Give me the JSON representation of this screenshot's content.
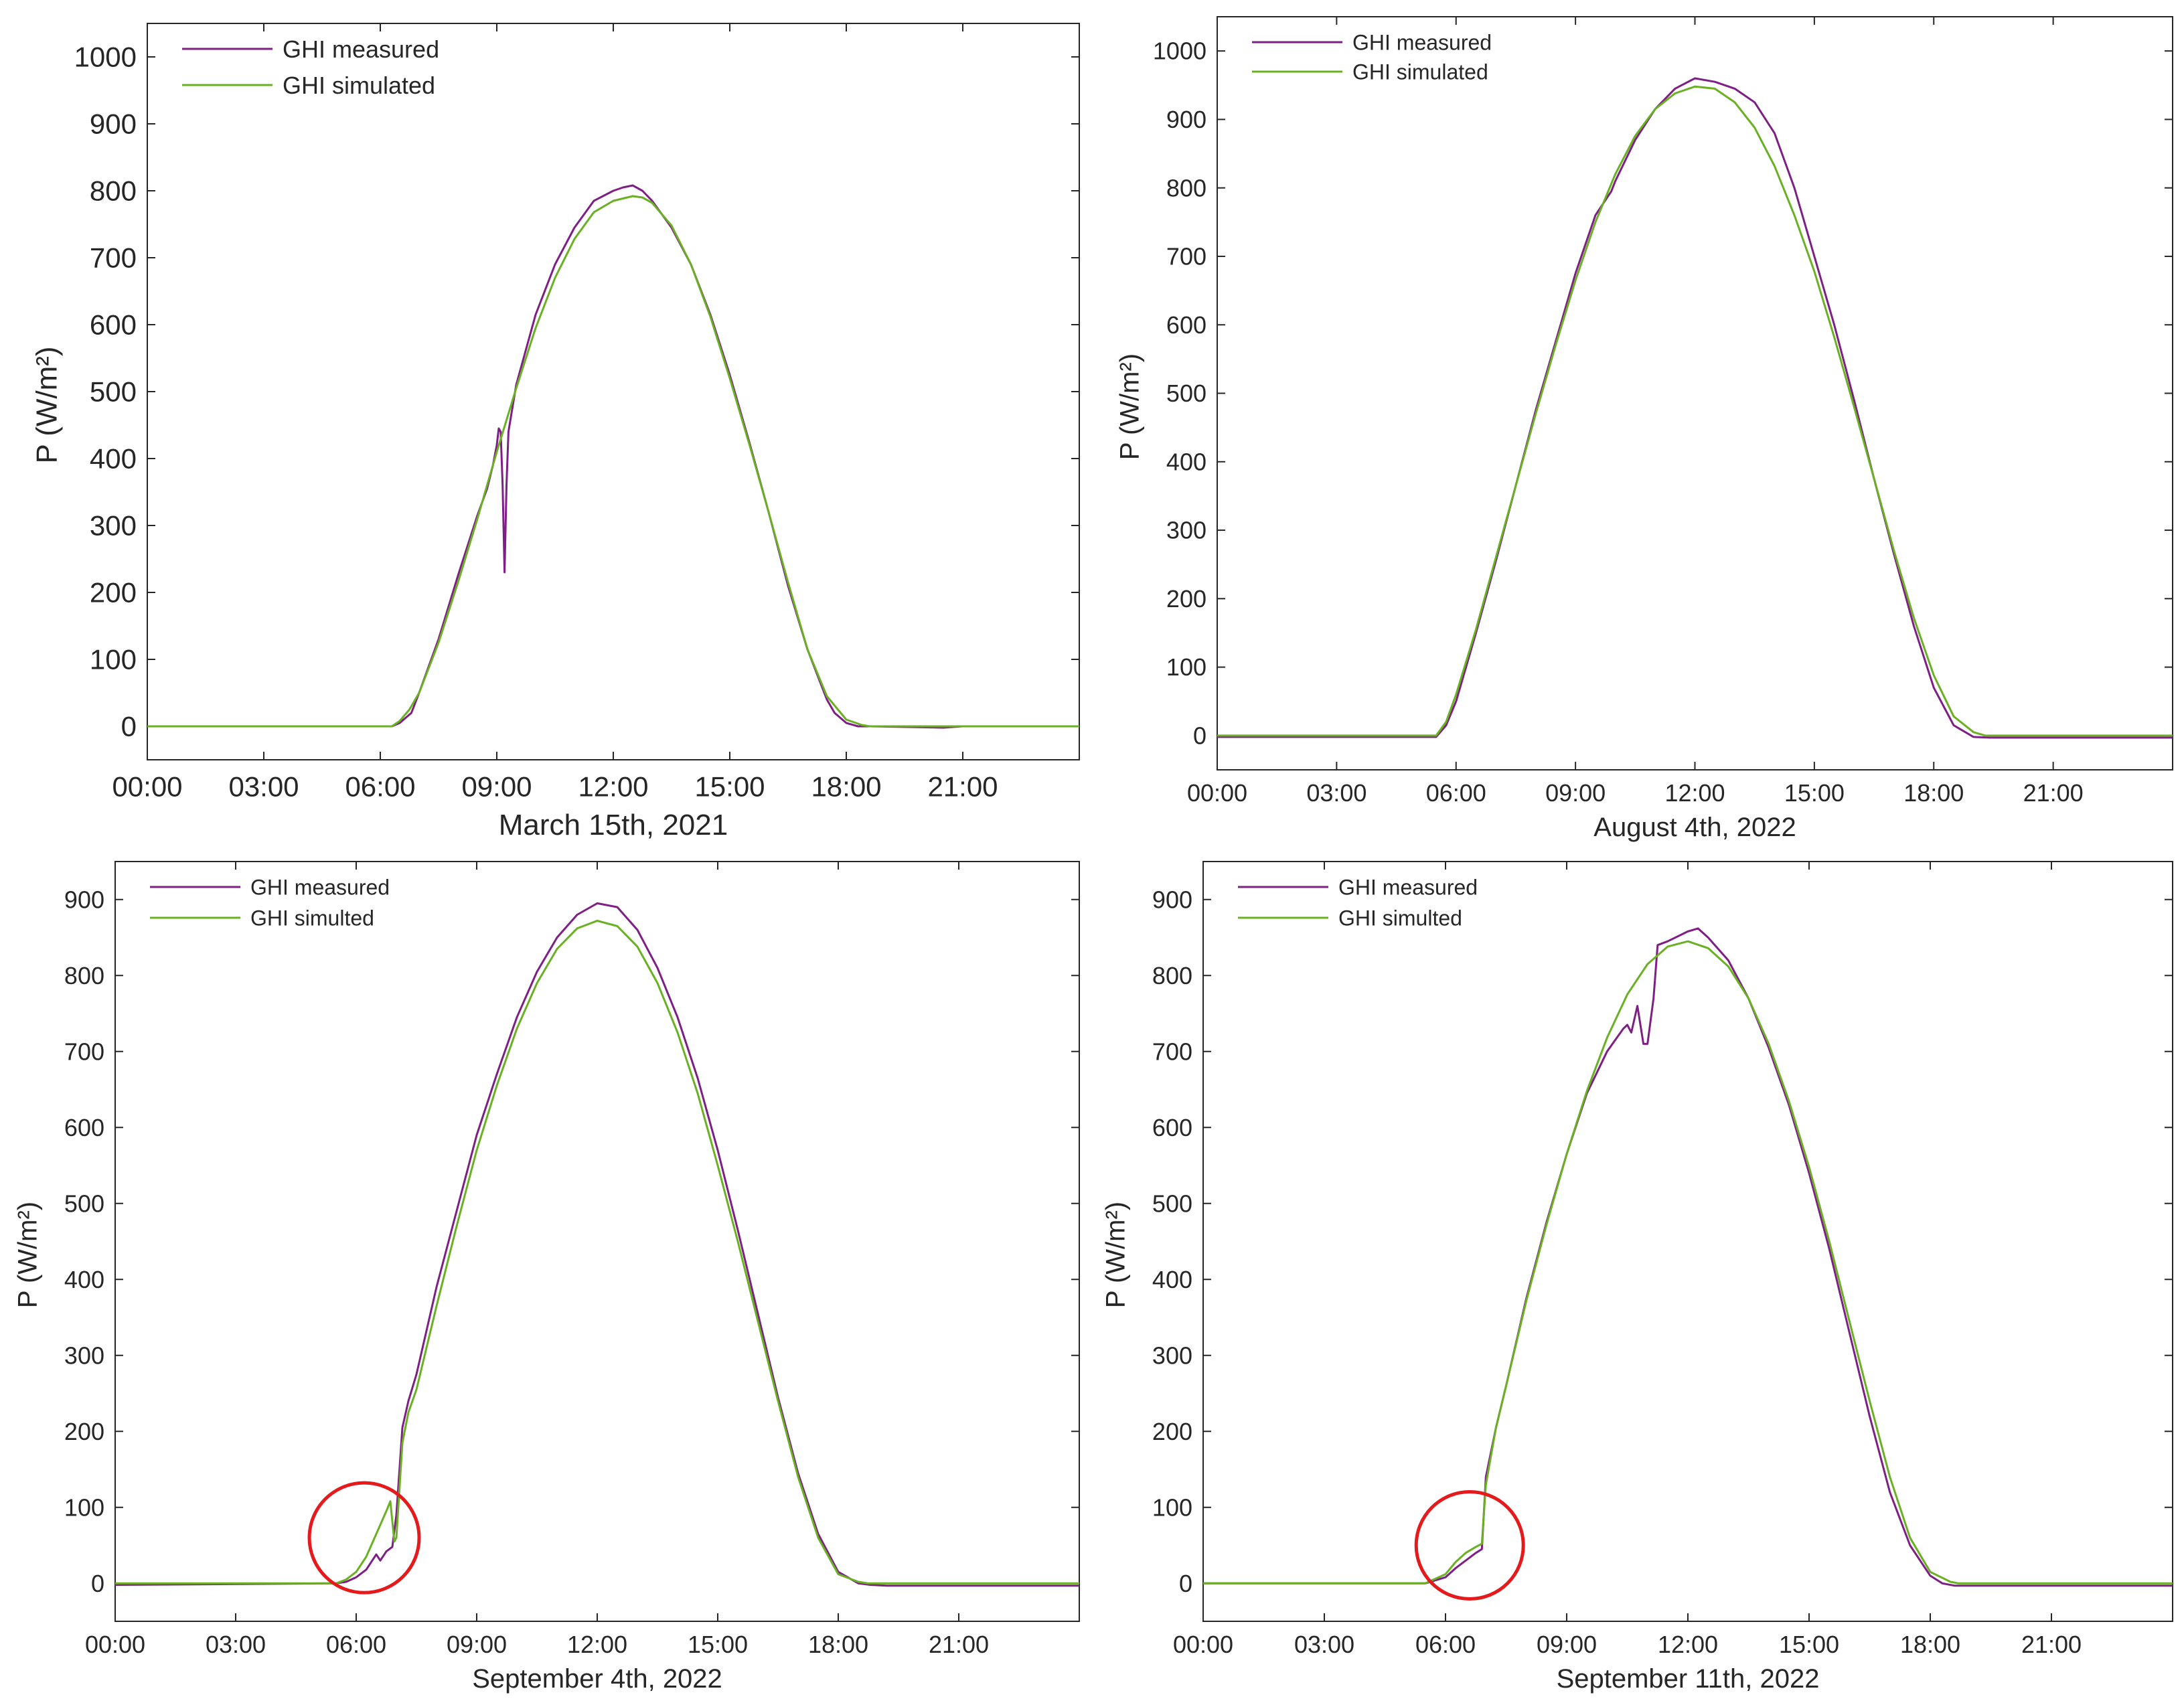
{
  "figure": {
    "background": "#ffffff"
  },
  "colors": {
    "measured": "#7e1f86",
    "simulated": "#6ab023",
    "highlight": "#e41a1c",
    "axis": "#262626"
  },
  "chart_data": [
    {
      "type": "line",
      "xlabel": "March 15th, 2021",
      "ylabel": "P (W/m²)",
      "xticks": [
        "00:00",
        "03:00",
        "06:00",
        "09:00",
        "12:00",
        "15:00",
        "18:00",
        "21:00"
      ],
      "xlim": [
        0,
        24
      ],
      "ylim": [
        -50,
        1050
      ],
      "yticks": [
        0,
        100,
        200,
        300,
        400,
        500,
        600,
        700,
        800,
        900,
        1000
      ],
      "legend": "top-left",
      "series": [
        {
          "name": "GHI measured",
          "color": "#7e1f86",
          "x": [
            0,
            6.3,
            6.5,
            6.8,
            7.0,
            7.5,
            8.0,
            8.5,
            8.75,
            8.9,
            9.0,
            9.05,
            9.1,
            9.15,
            9.2,
            9.25,
            9.3,
            9.5,
            10.0,
            10.5,
            11.0,
            11.5,
            12.0,
            12.25,
            12.5,
            12.75,
            13.0,
            13.5,
            14.0,
            14.5,
            15.0,
            15.5,
            16.0,
            16.5,
            17.0,
            17.5,
            17.7,
            18.0,
            18.3,
            18.5,
            18.6,
            20.5,
            21.0,
            24.0
          ],
          "y": [
            0,
            0,
            5,
            20,
            50,
            130,
            225,
            315,
            355,
            390,
            420,
            445,
            440,
            360,
            230,
            360,
            440,
            510,
            615,
            690,
            745,
            785,
            800,
            805,
            808,
            800,
            785,
            745,
            690,
            615,
            525,
            425,
            320,
            210,
            115,
            40,
            20,
            5,
            0,
            0,
            0,
            -2,
            0,
            0
          ]
        },
        {
          "name": "GHI simulated",
          "color": "#6ab023",
          "x": [
            0,
            6.3,
            6.5,
            6.75,
            7.0,
            7.5,
            8.0,
            8.5,
            9.0,
            9.5,
            10.0,
            10.5,
            11.0,
            11.5,
            12.0,
            12.5,
            12.75,
            13.0,
            13.5,
            14.0,
            14.5,
            15.0,
            15.5,
            16.0,
            16.5,
            17.0,
            17.5,
            18.0,
            18.4,
            18.6,
            24.0
          ],
          "y": [
            0,
            0,
            8,
            25,
            50,
            125,
            215,
            310,
            410,
            505,
            595,
            670,
            728,
            768,
            785,
            792,
            790,
            782,
            748,
            690,
            612,
            520,
            422,
            320,
            215,
            115,
            45,
            10,
            2,
            0,
            0
          ]
        }
      ]
    },
    {
      "type": "line",
      "xlabel": "August 4th, 2022",
      "ylabel": "P (W/m²)",
      "xticks": [
        "00:00",
        "03:00",
        "06:00",
        "09:00",
        "12:00",
        "15:00",
        "18:00",
        "21:00"
      ],
      "xlim": [
        0,
        24
      ],
      "ylim": [
        -50,
        1050
      ],
      "yticks": [
        0,
        100,
        200,
        300,
        400,
        500,
        600,
        700,
        800,
        900,
        1000
      ],
      "legend": "top-left",
      "series": [
        {
          "name": "GHI measured",
          "color": "#7e1f86",
          "x": [
            0,
            5.5,
            5.75,
            6.0,
            6.5,
            7.0,
            7.5,
            8.0,
            8.5,
            9.0,
            9.5,
            9.9,
            10.0,
            10.5,
            11.0,
            11.5,
            12.0,
            12.5,
            13.0,
            13.5,
            14.0,
            14.5,
            15.0,
            15.5,
            16.0,
            16.5,
            17.0,
            17.5,
            18.0,
            18.5,
            19.0,
            19.4,
            19.8,
            24.0
          ],
          "y": [
            -2,
            -2,
            15,
            50,
            150,
            255,
            365,
            475,
            575,
            675,
            760,
            795,
            810,
            870,
            915,
            945,
            960,
            955,
            945,
            925,
            880,
            800,
            700,
            600,
            490,
            375,
            265,
            160,
            70,
            15,
            -2,
            -3,
            -3,
            -3
          ]
        },
        {
          "name": "GHI simulated",
          "color": "#6ab023",
          "x": [
            0,
            5.5,
            5.75,
            6.0,
            6.5,
            7.0,
            7.5,
            8.0,
            8.5,
            9.0,
            9.5,
            10.0,
            10.5,
            11.0,
            11.5,
            12.0,
            12.5,
            13.0,
            13.5,
            14.0,
            14.5,
            15.0,
            15.5,
            16.0,
            16.5,
            17.0,
            17.5,
            18.0,
            18.5,
            19.0,
            19.3,
            24.0
          ],
          "y": [
            0,
            0,
            20,
            60,
            155,
            260,
            365,
            470,
            570,
            665,
            750,
            820,
            876,
            915,
            938,
            948,
            945,
            925,
            888,
            832,
            760,
            678,
            582,
            480,
            375,
            270,
            172,
            88,
            28,
            5,
            0,
            0
          ]
        }
      ]
    },
    {
      "type": "line",
      "xlabel": "September 4th, 2022",
      "ylabel": "P (W/m²)",
      "xticks": [
        "00:00",
        "03:00",
        "06:00",
        "09:00",
        "12:00",
        "15:00",
        "18:00",
        "21:00"
      ],
      "xlim": [
        0,
        24
      ],
      "ylim": [
        -50,
        950
      ],
      "yticks": [
        0,
        100,
        200,
        300,
        400,
        500,
        600,
        700,
        800,
        900
      ],
      "legend": "top-left",
      "annotations": [
        {
          "type": "circle",
          "x": 6.2,
          "y": 60
        }
      ],
      "series": [
        {
          "name": "GHI measured",
          "color": "#7e1f86",
          "x": [
            0,
            5.5,
            5.75,
            6.0,
            6.25,
            6.5,
            6.6,
            6.75,
            6.9,
            7.0,
            7.15,
            7.3,
            7.5,
            8.0,
            8.5,
            9.0,
            9.5,
            10.0,
            10.5,
            11.0,
            11.5,
            12.0,
            12.5,
            13.0,
            13.5,
            14.0,
            14.5,
            15.0,
            15.5,
            16.0,
            16.5,
            17.0,
            17.5,
            18.0,
            18.5,
            18.8,
            19.2,
            24.0
          ],
          "y": [
            -2,
            0,
            2,
            8,
            18,
            38,
            30,
            42,
            48,
            90,
            205,
            240,
            275,
            390,
            490,
            590,
            670,
            745,
            805,
            850,
            880,
            895,
            890,
            860,
            810,
            745,
            665,
            570,
            465,
            355,
            245,
            145,
            65,
            15,
            0,
            -2,
            -3,
            -3
          ]
        },
        {
          "name": "GHI simulted",
          "color": "#6ab023",
          "x": [
            0,
            5.5,
            5.75,
            6.0,
            6.25,
            6.5,
            6.75,
            6.85,
            6.95,
            7.0,
            7.15,
            7.3,
            7.5,
            8.0,
            8.5,
            9.0,
            9.5,
            10.0,
            10.5,
            11.0,
            11.5,
            12.0,
            12.5,
            13.0,
            13.5,
            14.0,
            14.5,
            15.0,
            15.5,
            16.0,
            16.5,
            17.0,
            17.5,
            18.0,
            18.5,
            18.75,
            24.0
          ],
          "y": [
            0,
            0,
            5,
            15,
            35,
            65,
            95,
            108,
            55,
            60,
            185,
            225,
            255,
            365,
            470,
            570,
            655,
            730,
            790,
            835,
            862,
            872,
            865,
            838,
            790,
            725,
            645,
            550,
            450,
            345,
            240,
            140,
            60,
            12,
            2,
            0,
            0
          ]
        }
      ]
    },
    {
      "type": "line",
      "xlabel": "September 11th, 2022",
      "ylabel": "P (W/m²)",
      "xticks": [
        "00:00",
        "03:00",
        "06:00",
        "09:00",
        "12:00",
        "15:00",
        "18:00",
        "21:00"
      ],
      "xlim": [
        0,
        24
      ],
      "ylim": [
        -50,
        950
      ],
      "yticks": [
        0,
        100,
        200,
        300,
        400,
        500,
        600,
        700,
        800,
        900
      ],
      "legend": "top-left",
      "annotations": [
        {
          "type": "circle",
          "x": 6.6,
          "y": 50
        }
      ],
      "series": [
        {
          "name": "GHI measured",
          "color": "#7e1f86",
          "x": [
            0,
            5.5,
            6.0,
            6.25,
            6.5,
            6.75,
            6.9,
            7.0,
            7.25,
            7.5,
            8.0,
            8.5,
            9.0,
            9.5,
            10.0,
            10.4,
            10.5,
            10.6,
            10.75,
            10.9,
            11.0,
            11.15,
            11.25,
            11.5,
            12.0,
            12.25,
            12.5,
            13.0,
            13.5,
            14.0,
            14.5,
            15.0,
            15.5,
            16.0,
            16.5,
            17.0,
            17.5,
            18.0,
            18.3,
            18.6,
            24.0
          ],
          "y": [
            0,
            0,
            8,
            20,
            30,
            40,
            45,
            140,
            205,
            260,
            375,
            475,
            565,
            645,
            700,
            730,
            735,
            725,
            760,
            710,
            710,
            770,
            840,
            845,
            858,
            862,
            850,
            820,
            770,
            705,
            630,
            540,
            440,
            330,
            220,
            120,
            50,
            10,
            0,
            -3,
            -3
          ]
        },
        {
          "name": "GHI simulted",
          "color": "#6ab023",
          "x": [
            0,
            5.5,
            6.0,
            6.25,
            6.5,
            6.75,
            6.9,
            7.0,
            7.25,
            7.5,
            8.0,
            8.5,
            9.0,
            9.5,
            10.0,
            10.5,
            11.0,
            11.5,
            12.0,
            12.5,
            13.0,
            13.5,
            14.0,
            14.5,
            15.0,
            15.5,
            16.0,
            16.5,
            17.0,
            17.5,
            18.0,
            18.5,
            18.7,
            24.0
          ],
          "y": [
            0,
            0,
            12,
            28,
            40,
            48,
            52,
            130,
            205,
            260,
            372,
            472,
            565,
            648,
            718,
            775,
            815,
            838,
            845,
            836,
            812,
            770,
            710,
            635,
            548,
            450,
            345,
            240,
            140,
            60,
            15,
            2,
            0,
            0
          ]
        }
      ]
    }
  ]
}
